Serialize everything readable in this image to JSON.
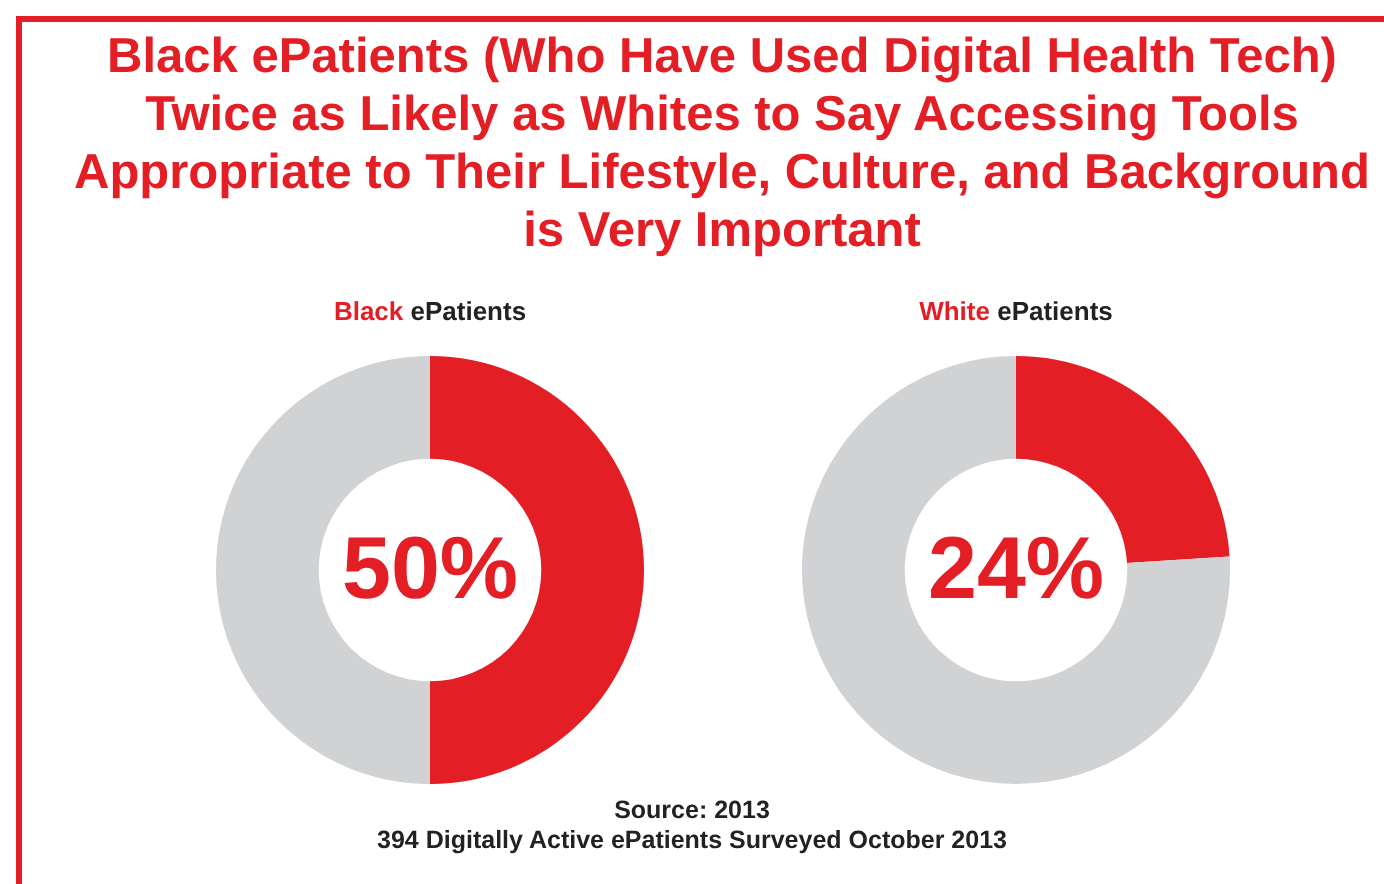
{
  "chart_data": [
    {
      "type": "other",
      "title": "Black ePatients (Who Have Used Digital Health Tech) Twice as Likely as Whites to Say Accessing Tools Appropriate to Their Lifestyle, Culture, and Background is Very Important",
      "annotations": [
        "Source: 2013",
        "394 Digitally Active ePatients Surveyed October 2013"
      ]
    },
    {
      "type": "donut",
      "title": "Black ePatients",
      "categories": [
        null,
        null
      ],
      "values": [
        50,
        50
      ],
      "colors": [
        "#e31e25",
        "#d1d2d4"
      ],
      "value_labels": [
        "50%",
        null
      ],
      "legend": false
    },
    {
      "type": "donut",
      "title": "White ePatients",
      "categories": [
        null,
        null
      ],
      "values": [
        24,
        76
      ],
      "colors": [
        "#e31e25",
        "#d1d2d4"
      ],
      "value_labels": [
        "24%",
        null
      ],
      "legend": false
    }
  ]
}
